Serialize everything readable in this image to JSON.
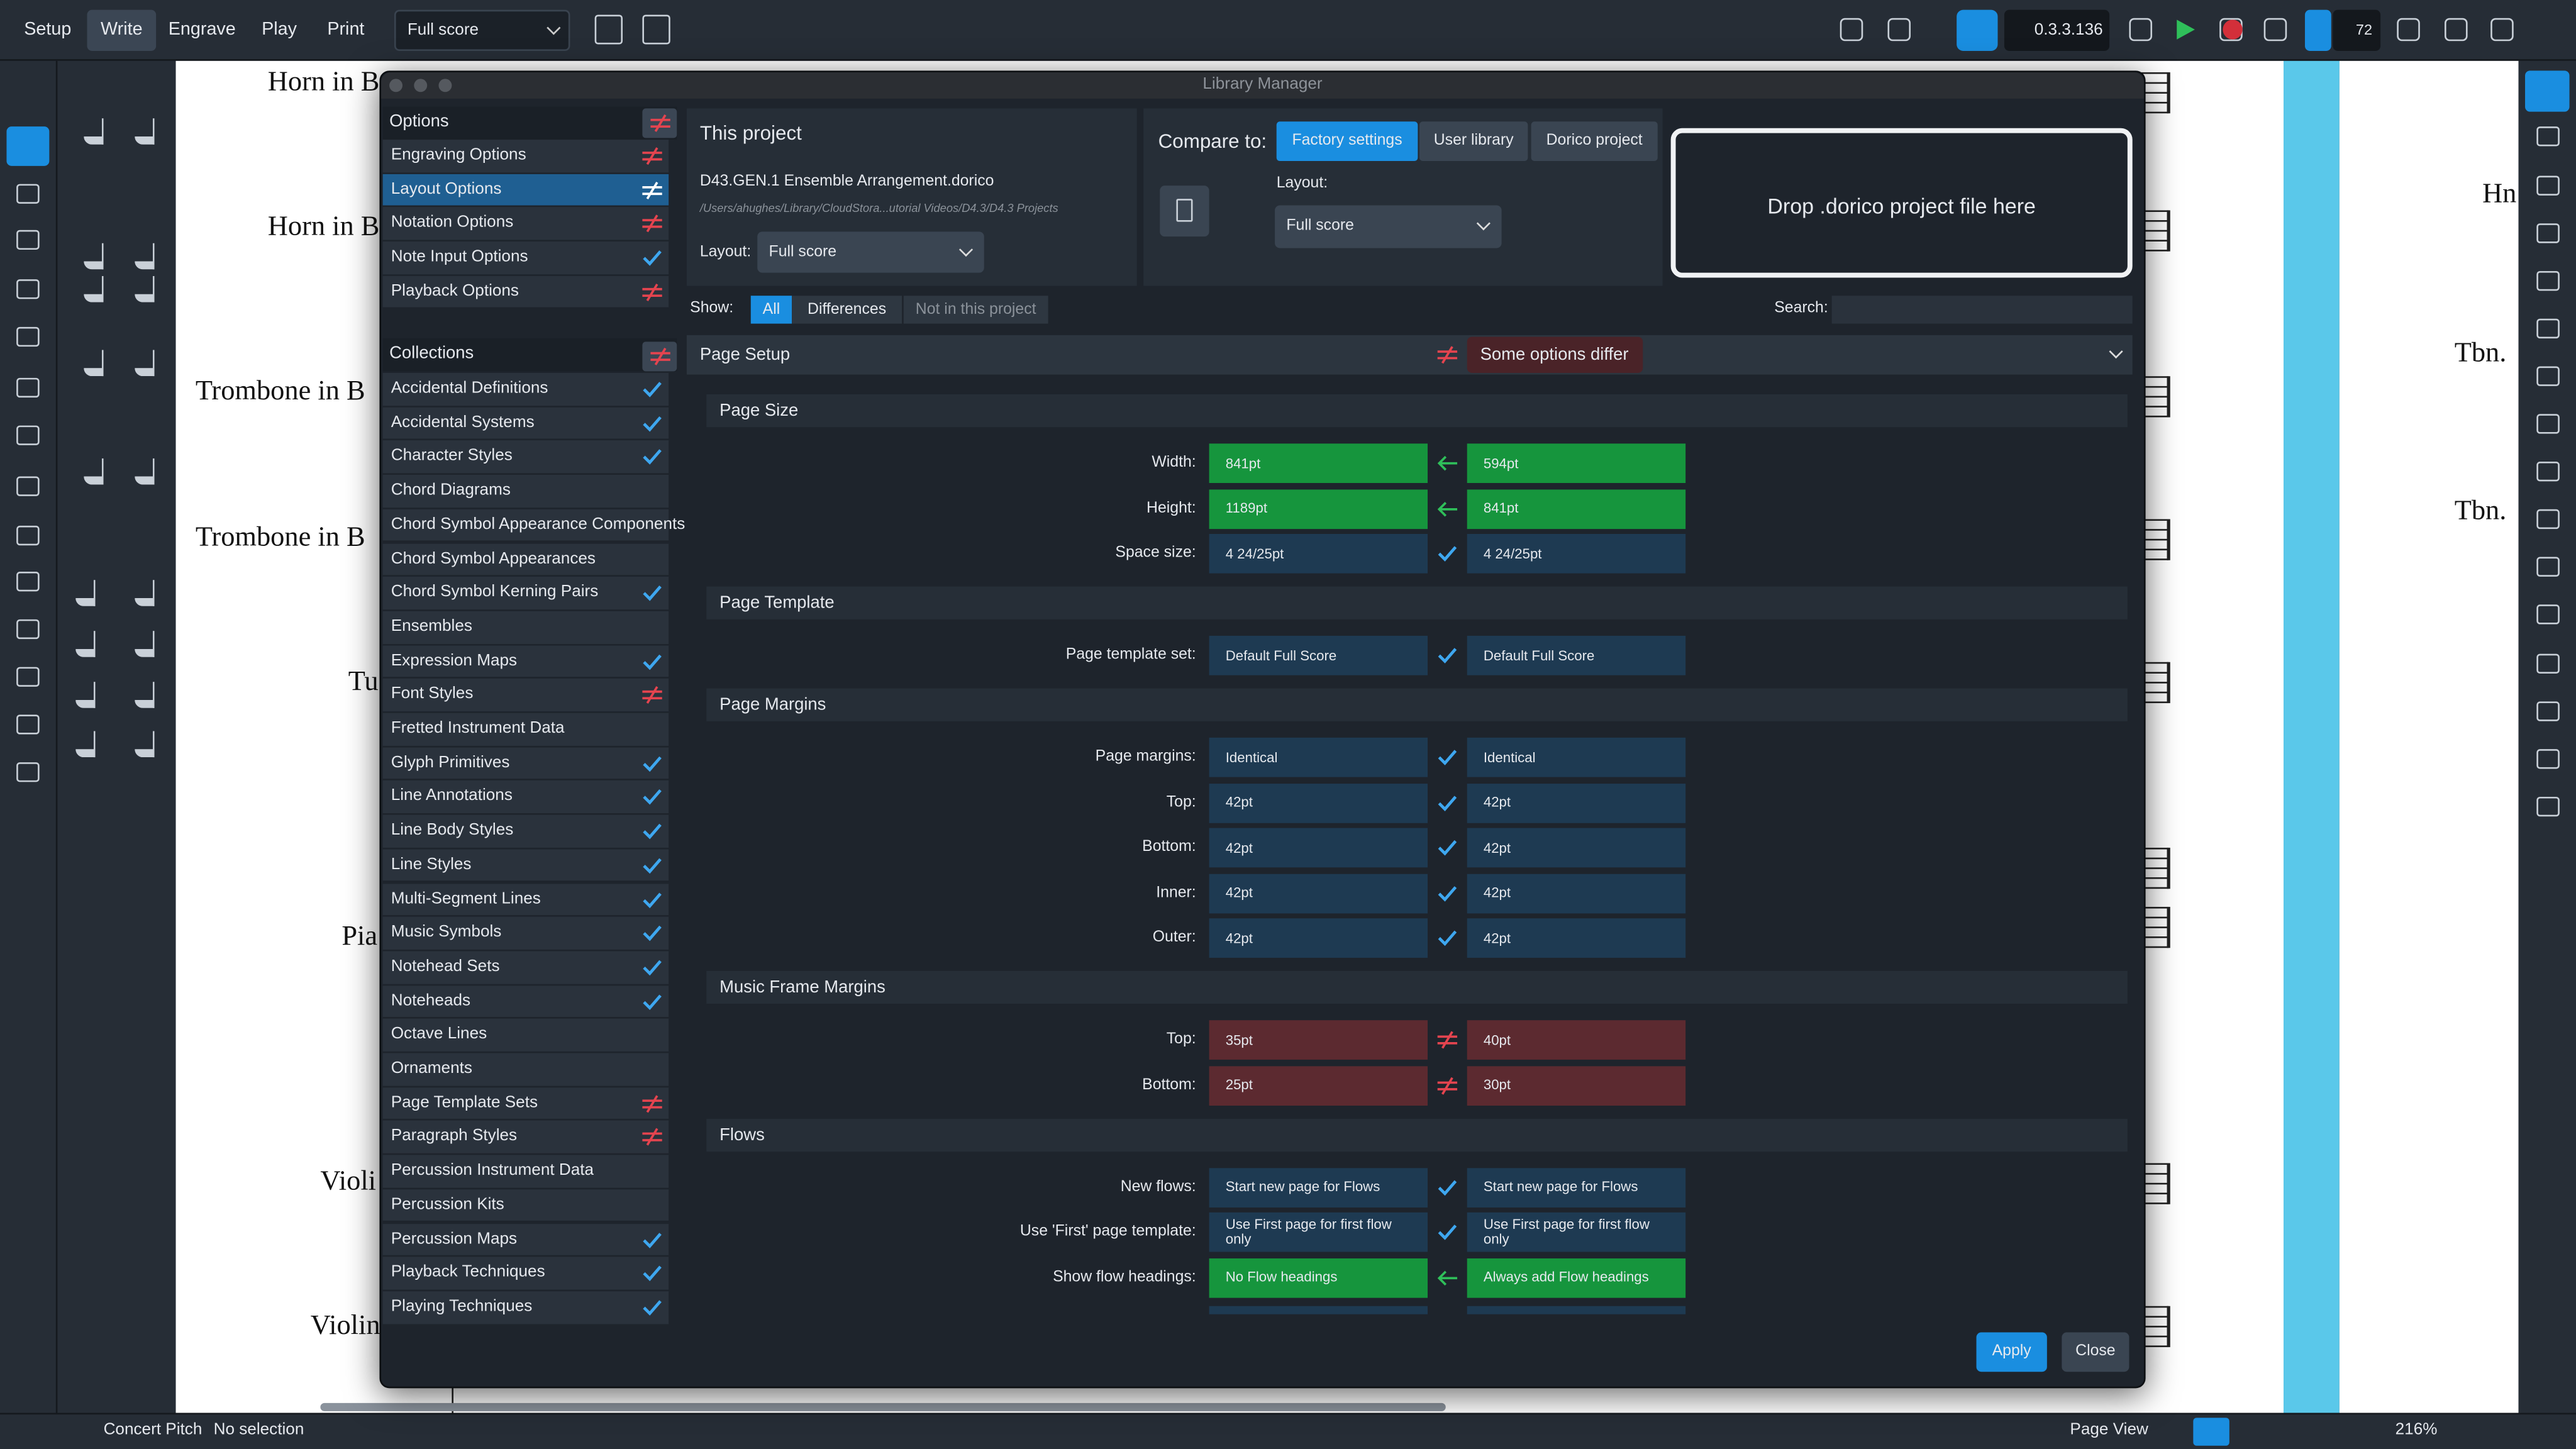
{
  "toolbar": {
    "modes": [
      {
        "label": "Setup"
      },
      {
        "label": "Write",
        "selected": true
      },
      {
        "label": "Engrave"
      },
      {
        "label": "Play"
      },
      {
        "label": "Print"
      }
    ],
    "layout_select": "Full score",
    "version": "0.3.3.136",
    "tempo": "72"
  },
  "score": {
    "left_labels": [
      "Horn in B",
      "Horn in B",
      "Trombone in B",
      "Trombone in B",
      "Tu",
      "Pia",
      "Violi",
      "Violin"
    ],
    "right_labels": [
      "Hn",
      "Tbn.",
      "Tbn."
    ]
  },
  "dialog": {
    "title": "Library Manager",
    "options_header": "Options",
    "options": [
      {
        "label": "Engraving Options",
        "status": "differ"
      },
      {
        "label": "Layout Options",
        "status": "differ",
        "selected": true
      },
      {
        "label": "Notation Options",
        "status": "differ"
      },
      {
        "label": "Note Input Options",
        "status": "same"
      },
      {
        "label": "Playback Options",
        "status": "differ"
      }
    ],
    "collections_header": "Collections",
    "collections": [
      {
        "label": "Accidental Definitions",
        "status": "same"
      },
      {
        "label": "Accidental Systems",
        "status": "same"
      },
      {
        "label": "Character Styles",
        "status": "same"
      },
      {
        "label": "Chord Diagrams"
      },
      {
        "label": "Chord Symbol Appearance Components"
      },
      {
        "label": "Chord Symbol Appearances"
      },
      {
        "label": "Chord Symbol Kerning Pairs",
        "status": "same"
      },
      {
        "label": "Ensembles"
      },
      {
        "label": "Expression Maps",
        "status": "same"
      },
      {
        "label": "Font Styles",
        "status": "differ"
      },
      {
        "label": "Fretted Instrument Data"
      },
      {
        "label": "Glyph Primitives",
        "status": "same"
      },
      {
        "label": "Line Annotations",
        "status": "same"
      },
      {
        "label": "Line Body Styles",
        "status": "same"
      },
      {
        "label": "Line Styles",
        "status": "same"
      },
      {
        "label": "Multi-Segment Lines",
        "status": "same"
      },
      {
        "label": "Music Symbols",
        "status": "same"
      },
      {
        "label": "Notehead Sets",
        "status": "same"
      },
      {
        "label": "Noteheads",
        "status": "same"
      },
      {
        "label": "Octave Lines"
      },
      {
        "label": "Ornaments"
      },
      {
        "label": "Page Template Sets",
        "status": "differ"
      },
      {
        "label": "Paragraph Styles",
        "status": "differ"
      },
      {
        "label": "Percussion Instrument Data"
      },
      {
        "label": "Percussion Kits"
      },
      {
        "label": "Percussion Maps",
        "status": "same"
      },
      {
        "label": "Playback Techniques",
        "status": "same"
      },
      {
        "label": "Playing Techniques",
        "status": "same"
      }
    ],
    "this_project": {
      "heading": "This project",
      "file": "D43.GEN.1 Ensemble Arrangement.dorico",
      "path": "/Users/ahughes/Library/CloudStora...utorial Videos/D4.3/D4.3 Projects",
      "layout_label": "Layout:",
      "layout": "Full score"
    },
    "compare": {
      "label": "Compare to:",
      "tabs": [
        {
          "label": "Factory settings",
          "selected": true
        },
        {
          "label": "User library"
        },
        {
          "label": "Dorico project"
        }
      ],
      "layout_label": "Layout:",
      "layout": "Full score",
      "drop": "Drop .dorico project file here"
    },
    "show": {
      "label": "Show:",
      "tabs": [
        {
          "label": "All",
          "selected": true
        },
        {
          "label": "Differences"
        },
        {
          "label": "Not in this project"
        }
      ]
    },
    "search_label": "Search:",
    "section": {
      "title": "Page Setup",
      "status": "Some options differ"
    },
    "groups": [
      {
        "title": "Page Size",
        "rows": [
          {
            "label": "Width:",
            "left": "841pt",
            "right": "594pt",
            "status": "changed"
          },
          {
            "label": "Height:",
            "left": "1189pt",
            "right": "841pt",
            "status": "changed"
          },
          {
            "label": "Space size:",
            "left": "4 24/25pt",
            "right": "4 24/25pt",
            "status": "same"
          }
        ]
      },
      {
        "title": "Page Template",
        "rows": [
          {
            "label": "Page template set:",
            "left": "Default Full Score",
            "right": "Default Full Score",
            "status": "same"
          }
        ]
      },
      {
        "title": "Page Margins",
        "rows": [
          {
            "label": "Page margins:",
            "left": "Identical",
            "right": "Identical",
            "status": "same"
          },
          {
            "label": "Top:",
            "left": "42pt",
            "right": "42pt",
            "status": "same"
          },
          {
            "label": "Bottom:",
            "left": "42pt",
            "right": "42pt",
            "status": "same"
          },
          {
            "label": "Inner:",
            "left": "42pt",
            "right": "42pt",
            "status": "same"
          },
          {
            "label": "Outer:",
            "left": "42pt",
            "right": "42pt",
            "status": "same"
          }
        ]
      },
      {
        "title": "Music Frame Margins",
        "rows": [
          {
            "label": "Top:",
            "left": "35pt",
            "right": "40pt",
            "status": "differ"
          },
          {
            "label": "Bottom:",
            "left": "25pt",
            "right": "30pt",
            "status": "differ"
          }
        ]
      },
      {
        "title": "Flows",
        "rows": [
          {
            "label": "New flows:",
            "left": "Start new page for Flows",
            "right": "Start new page for Flows",
            "status": "same"
          },
          {
            "label": "Use 'First' page template:",
            "left": "Use First page for first flow only",
            "right": "Use First page for first flow only",
            "status": "same"
          },
          {
            "label": "Show flow headings:",
            "left": "No Flow headings",
            "right": "Always add Flow headings",
            "status": "changed"
          }
        ]
      }
    ],
    "buttons": [
      {
        "label": "Apply",
        "primary": true
      },
      {
        "label": "Close"
      }
    ]
  },
  "statusbar": {
    "concert_pitch": "Concert Pitch",
    "selection": "No selection",
    "view": "Page View",
    "zoom": "216%"
  }
}
